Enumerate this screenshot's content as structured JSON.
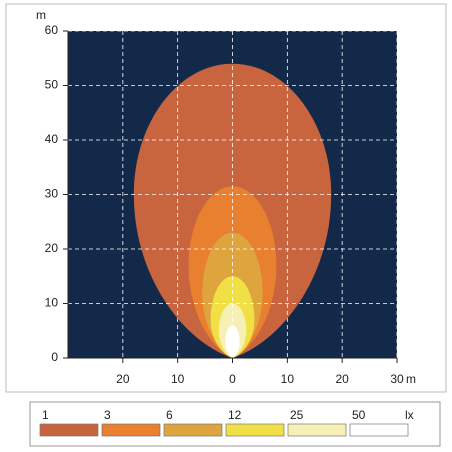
{
  "chart_data": {
    "type": "isolux",
    "y_label": "m",
    "x_label": "m",
    "unit_label": "lx",
    "xlim": [
      -30,
      30
    ],
    "ylim": [
      0,
      60
    ],
    "xticks": [
      {
        "value": -20,
        "label": "20"
      },
      {
        "value": -10,
        "label": "10"
      },
      0,
      10,
      20,
      30
    ],
    "yticks": [
      0,
      10,
      20,
      30,
      40,
      50,
      60
    ],
    "grid": true,
    "background": "#13294a",
    "series": [
      {
        "name": "1",
        "color": "#c8653e",
        "length": 54,
        "half_width": 18,
        "widest_at": 30
      },
      {
        "name": "3",
        "color": "#e8802f",
        "length": 31.5,
        "half_width": 8,
        "widest_at": 17
      },
      {
        "name": "6",
        "color": "#dea43e",
        "length": 23,
        "half_width": 5.5,
        "widest_at": 12
      },
      {
        "name": "12",
        "color": "#f0e046",
        "length": 15,
        "half_width": 4,
        "widest_at": 7
      },
      {
        "name": "25",
        "color": "#f7f0b4",
        "length": 10,
        "half_width": 2.5,
        "widest_at": 5
      },
      {
        "name": "50",
        "color": "#ffffff",
        "length": 6,
        "half_width": 1.3,
        "widest_at": 3
      }
    ]
  }
}
